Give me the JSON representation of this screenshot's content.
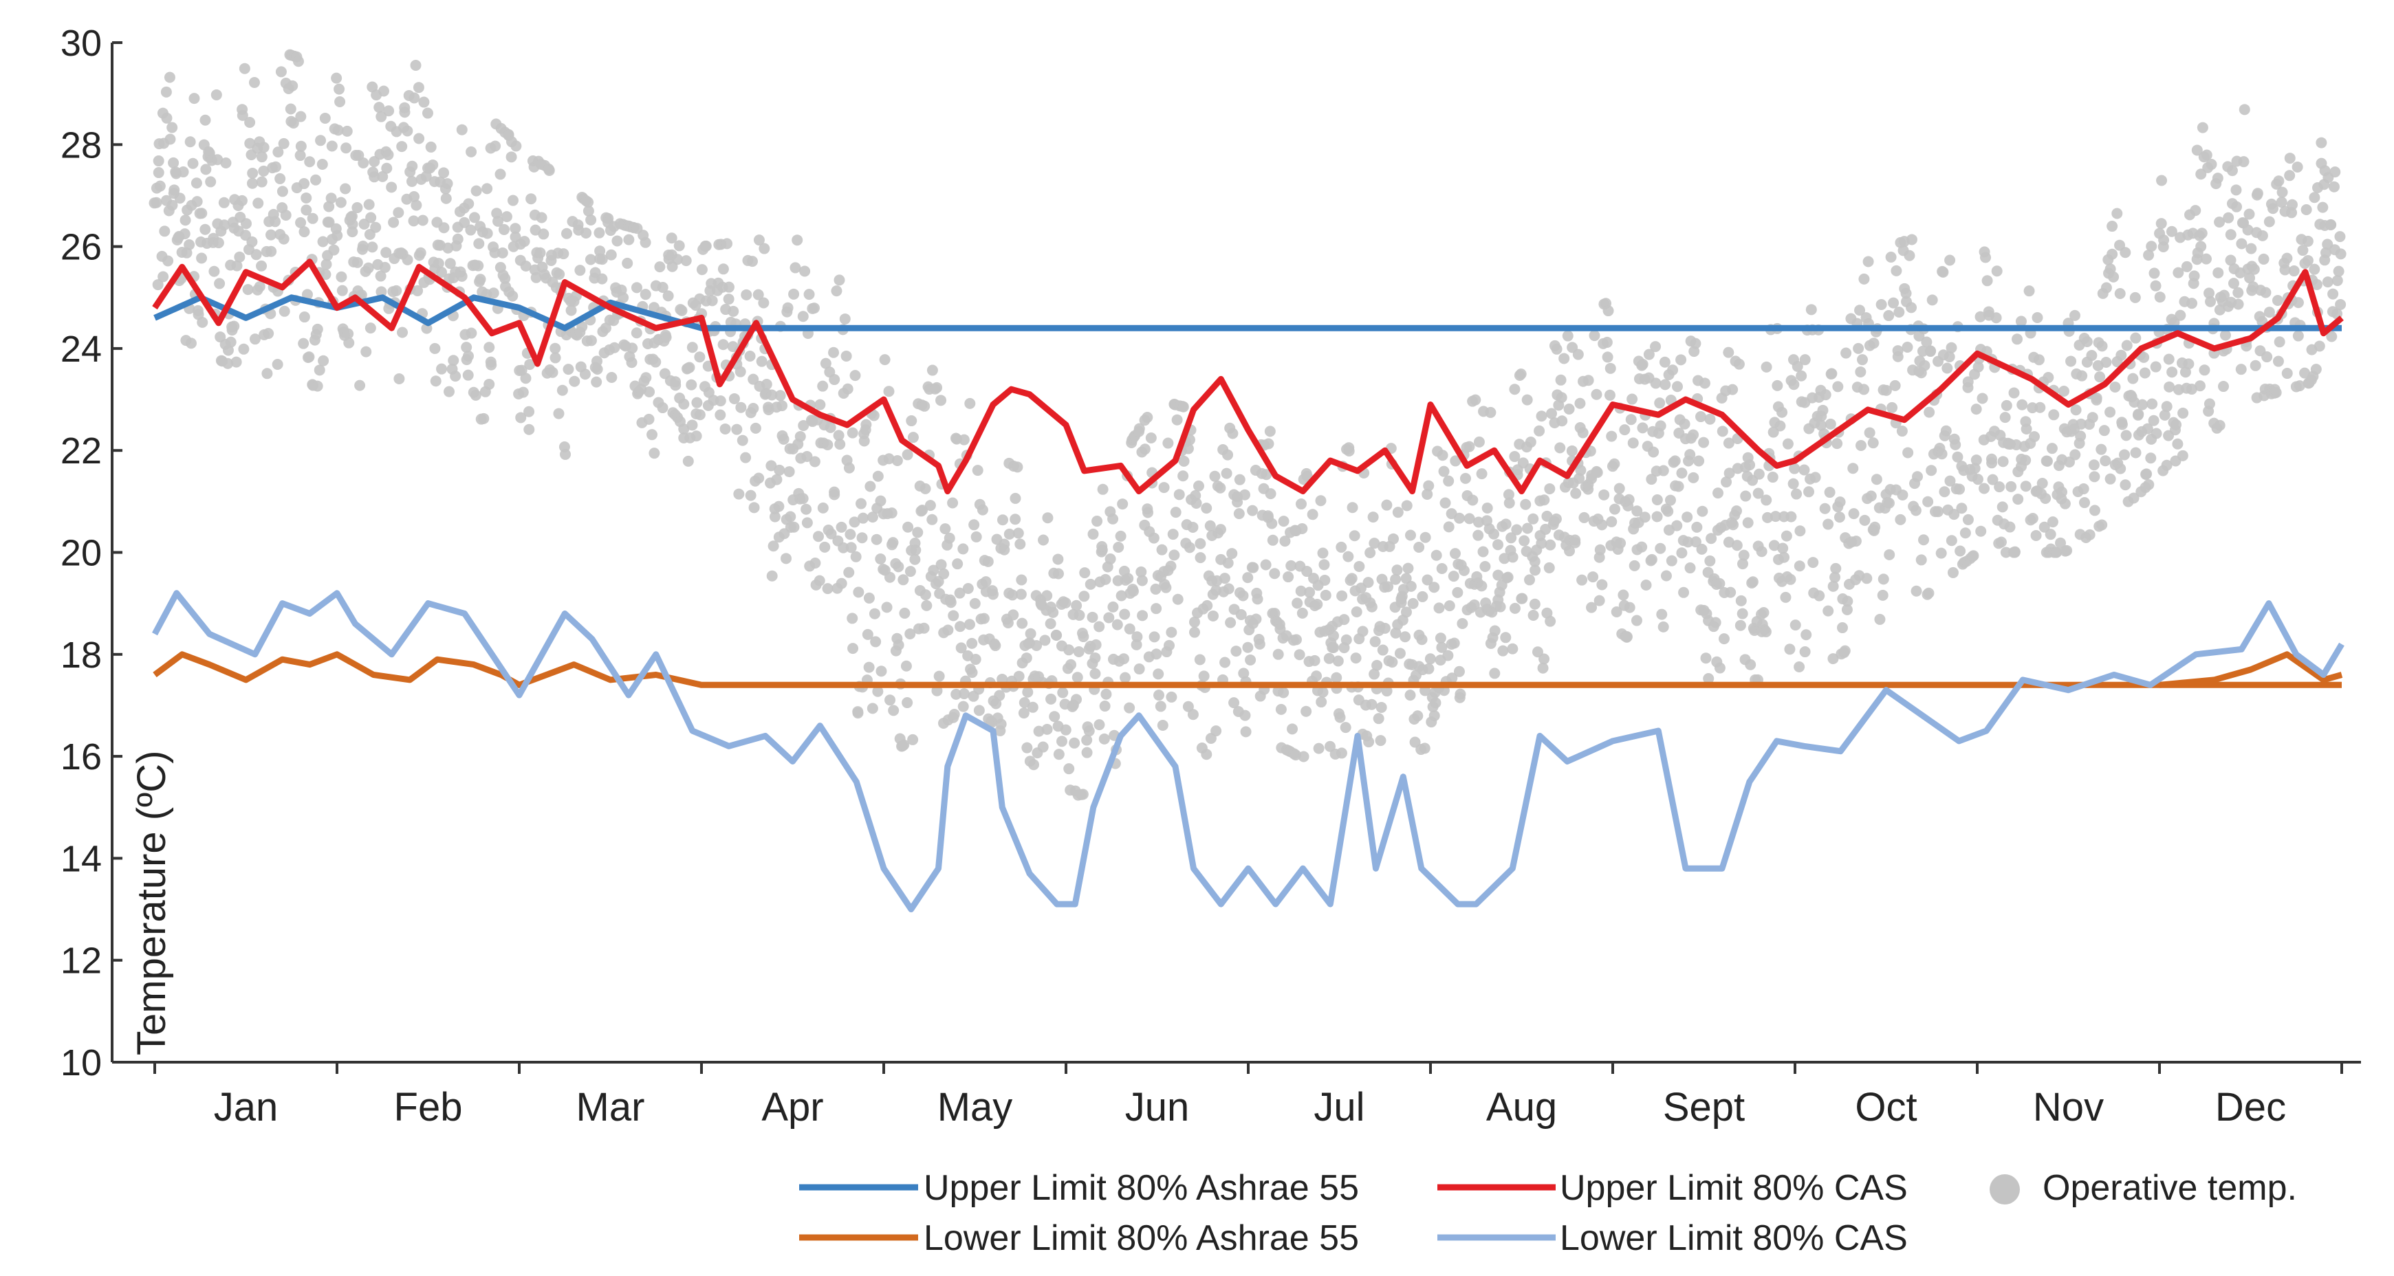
{
  "chart_data": {
    "type": "line",
    "title": "",
    "xlabel": "",
    "ylabel": "Temperature (ºC)",
    "ylim": [
      10,
      30
    ],
    "yticks": [
      "10",
      "12",
      "14",
      "16",
      "18",
      "20",
      "22",
      "24",
      "26",
      "28",
      "30"
    ],
    "xlim": [
      0,
      12
    ],
    "categories": [
      "Jan",
      "Feb",
      "Mar",
      "Apr",
      "May",
      "Jun",
      "Jul",
      "Aug",
      "Sept",
      "Oct",
      "Nov",
      "Dec"
    ],
    "grid": false,
    "legend_position": "bottom",
    "series": [
      {
        "name": "Upper Limit 80% Ashrae 55",
        "color": "#3a7fc1",
        "kind": "line",
        "x": [
          0,
          0.25,
          0.5,
          0.75,
          1.0,
          1.25,
          1.5,
          1.75,
          2.0,
          2.25,
          2.5,
          3.0,
          12.0
        ],
        "y": [
          24.6,
          25.0,
          24.6,
          25.0,
          24.8,
          25.0,
          24.5,
          25.0,
          24.8,
          24.4,
          24.9,
          24.4,
          24.4
        ]
      },
      {
        "name": "Upper Limit 80% CAS",
        "color": "#e31e24",
        "kind": "line",
        "x": [
          0,
          0.15,
          0.35,
          0.5,
          0.7,
          0.85,
          1.0,
          1.1,
          1.3,
          1.45,
          1.7,
          1.85,
          2.0,
          2.1,
          2.25,
          2.5,
          2.75,
          3.0,
          3.1,
          3.3,
          3.5,
          3.65,
          3.8,
          4.0,
          4.1,
          4.3,
          4.35,
          4.45,
          4.6,
          4.7,
          4.8,
          5.0,
          5.1,
          5.3,
          5.4,
          5.6,
          5.7,
          5.85,
          6.0,
          6.15,
          6.3,
          6.45,
          6.6,
          6.75,
          6.9,
          7.0,
          7.2,
          7.35,
          7.5,
          7.6,
          7.75,
          8.0,
          8.25,
          8.4,
          8.6,
          8.8,
          8.9,
          9.0,
          9.2,
          9.4,
          9.6,
          9.8,
          10.0,
          10.3,
          10.5,
          10.7,
          10.9,
          11.1,
          11.3,
          11.5,
          11.65,
          11.8,
          11.9,
          12.0
        ],
        "y": [
          24.8,
          25.6,
          24.5,
          25.5,
          25.2,
          25.7,
          24.8,
          25.0,
          24.4,
          25.6,
          25.0,
          24.3,
          24.5,
          23.7,
          25.3,
          24.8,
          24.4,
          24.6,
          23.3,
          24.5,
          23.0,
          22.7,
          22.5,
          23.0,
          22.2,
          21.7,
          21.2,
          21.8,
          22.9,
          23.2,
          23.1,
          22.5,
          21.6,
          21.7,
          21.2,
          21.8,
          22.8,
          23.4,
          22.4,
          21.5,
          21.2,
          21.8,
          21.6,
          22.0,
          21.2,
          22.9,
          21.7,
          22.0,
          21.2,
          21.8,
          21.5,
          22.9,
          22.7,
          23.0,
          22.7,
          22.0,
          21.7,
          21.8,
          22.3,
          22.8,
          22.6,
          23.2,
          23.9,
          23.4,
          22.9,
          23.3,
          24.0,
          24.3,
          24.0,
          24.2,
          24.6,
          25.5,
          24.3,
          24.6
        ]
      },
      {
        "name": "Lower Limit 80% Ashrae 55",
        "color": "#d2691e",
        "kind": "line",
        "x": [
          0,
          0.15,
          0.3,
          0.5,
          0.7,
          0.85,
          1.0,
          1.2,
          1.4,
          1.55,
          1.75,
          1.9,
          2.0,
          2.3,
          2.5,
          2.75,
          3.0,
          12.0
        ],
        "y": [
          17.6,
          18.0,
          17.8,
          17.5,
          17.9,
          17.8,
          18.0,
          17.6,
          17.5,
          17.9,
          17.8,
          17.6,
          17.4,
          17.8,
          17.5,
          17.6,
          17.4,
          17.4
        ],
        "tail_x": [
          11.0,
          11.3,
          11.5,
          11.7,
          11.9,
          12.0
        ],
        "tail_y": [
          17.4,
          17.5,
          17.7,
          18.0,
          17.5,
          17.6
        ]
      },
      {
        "name": "Lower Limit 80% CAS",
        "color": "#8fb0de",
        "kind": "line",
        "x": [
          0,
          0.12,
          0.3,
          0.55,
          0.7,
          0.85,
          1.0,
          1.1,
          1.3,
          1.5,
          1.7,
          1.85,
          2.0,
          2.25,
          2.4,
          2.6,
          2.75,
          2.95,
          3.15,
          3.35,
          3.5,
          3.65,
          3.85,
          4.0,
          4.15,
          4.3,
          4.35,
          4.45,
          4.6,
          4.65,
          4.8,
          4.95,
          5.05,
          5.15,
          5.3,
          5.4,
          5.6,
          5.7,
          5.85,
          6.0,
          6.15,
          6.3,
          6.45,
          6.6,
          6.7,
          6.85,
          6.95,
          7.15,
          7.25,
          7.45,
          7.6,
          7.75,
          8.0,
          8.25,
          8.4,
          8.6,
          8.75,
          8.9,
          9.05,
          9.25,
          9.5,
          9.7,
          9.9,
          10.05,
          10.25,
          10.5,
          10.75,
          10.95,
          11.2,
          11.45,
          11.6,
          11.75,
          11.9,
          12.0
        ],
        "y": [
          18.4,
          19.2,
          18.4,
          18.0,
          19.0,
          18.8,
          19.2,
          18.6,
          18.0,
          19.0,
          18.8,
          18.0,
          17.2,
          18.8,
          18.3,
          17.2,
          18.0,
          16.5,
          16.2,
          16.4,
          15.9,
          16.6,
          15.5,
          13.8,
          13.0,
          13.8,
          15.8,
          16.8,
          16.5,
          15.0,
          13.7,
          13.1,
          13.1,
          15.0,
          16.4,
          16.8,
          15.8,
          13.8,
          13.1,
          13.8,
          13.1,
          13.8,
          13.1,
          16.4,
          13.8,
          15.6,
          13.8,
          13.1,
          13.1,
          13.8,
          16.4,
          15.9,
          16.3,
          16.5,
          13.8,
          13.8,
          15.5,
          16.3,
          16.2,
          16.1,
          17.3,
          16.8,
          16.3,
          16.5,
          17.5,
          17.3,
          17.6,
          17.4,
          18.0,
          18.1,
          19.0,
          18.0,
          17.6,
          18.2
        ]
      },
      {
        "name": "Operative temp.",
        "color": "#c4c4c4",
        "kind": "scatter",
        "x": [
          0,
          0.5,
          1.0,
          1.5,
          2.0,
          2.5,
          3.0,
          3.5,
          4.0,
          4.5,
          5.0,
          5.5,
          6.0,
          6.5,
          7.0,
          7.5,
          8.0,
          8.5,
          9.0,
          9.5,
          10.0,
          10.5,
          11.0,
          11.5,
          12.0
        ],
        "center": [
          26.3,
          26.5,
          26.4,
          26.1,
          25.6,
          25.0,
          24.0,
          22.5,
          20.0,
          19.5,
          17.5,
          20.0,
          19.0,
          18.5,
          19.0,
          21.0,
          21.5,
          21.0,
          21.0,
          22.5,
          22.5,
          21.8,
          24.2,
          25.5,
          25.5
        ],
        "min": [
          24.5,
          23.5,
          23.2,
          23.5,
          22.0,
          21.5,
          21.5,
          19.0,
          16.0,
          17.0,
          15.2,
          15.5,
          16.5,
          15.6,
          16.2,
          17.5,
          18.5,
          17.5,
          17.5,
          18.5,
          20.0,
          20.0,
          21.5,
          23.0,
          23.5
        ],
        "max": [
          29.5,
          30.0,
          29.5,
          29.6,
          28.0,
          26.5,
          26.0,
          26.2,
          24.5,
          23.5,
          20.0,
          23.0,
          22.5,
          22.0,
          22.5,
          23.5,
          25.0,
          24.0,
          24.5,
          26.0,
          26.5,
          25.5,
          28.0,
          29.0,
          28.0
        ]
      }
    ]
  }
}
